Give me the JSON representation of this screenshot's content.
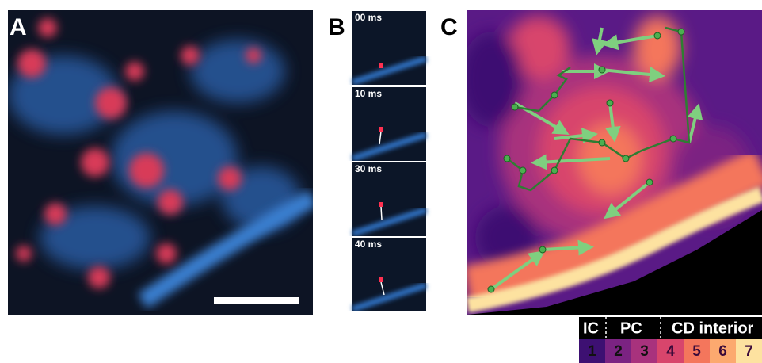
{
  "panels": {
    "a": {
      "label": "A"
    },
    "b": {
      "label": "B",
      "frames": [
        "00 ms",
        "10 ms",
        "30 ms",
        "40 ms"
      ]
    },
    "c": {
      "label": "C"
    }
  },
  "legend": {
    "groups": [
      "IC",
      "PC",
      "CD interior"
    ],
    "levels": [
      1,
      2,
      3,
      4,
      5,
      6,
      7
    ],
    "colors": [
      "#3d1072",
      "#7b2382",
      "#a8327d",
      "#d8456c",
      "#f4765c",
      "#fca96f",
      "#fde2a0"
    ]
  }
}
